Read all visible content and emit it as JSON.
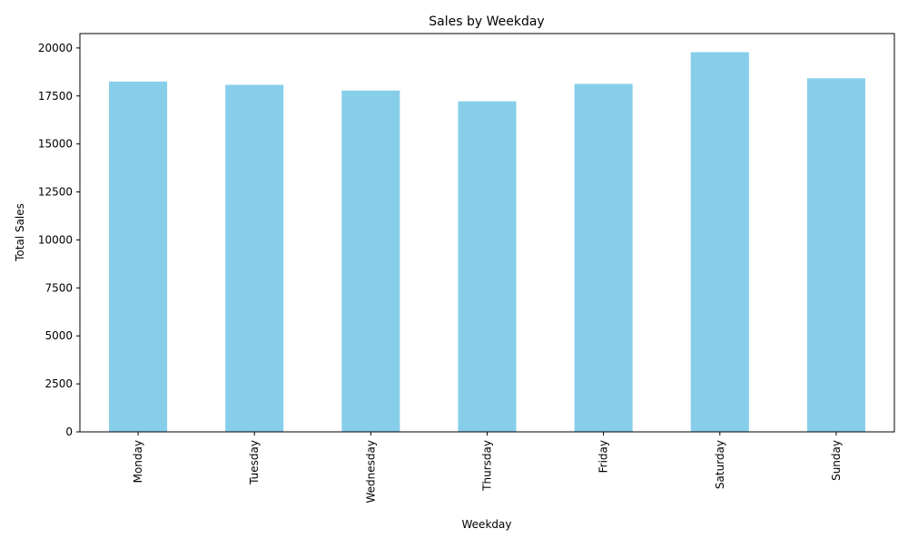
{
  "chart_data": {
    "type": "bar",
    "title": "Sales by Weekday",
    "xlabel": "Weekday",
    "ylabel": "Total Sales",
    "categories": [
      "Monday",
      "Tuesday",
      "Wednesday",
      "Thursday",
      "Friday",
      "Saturday",
      "Sunday"
    ],
    "values": [
      18250,
      18080,
      17780,
      17220,
      18130,
      19780,
      18420
    ],
    "ylim": [
      0,
      20750
    ],
    "yticks": [
      0,
      2500,
      5000,
      7500,
      10000,
      12500,
      15000,
      17500,
      20000
    ],
    "ytick_labels": [
      "0",
      "2500",
      "5000",
      "7500",
      "10000",
      "12500",
      "15000",
      "17500",
      "20000"
    ],
    "bar_color": "#87ceeb",
    "grid": false,
    "legend": "none"
  }
}
